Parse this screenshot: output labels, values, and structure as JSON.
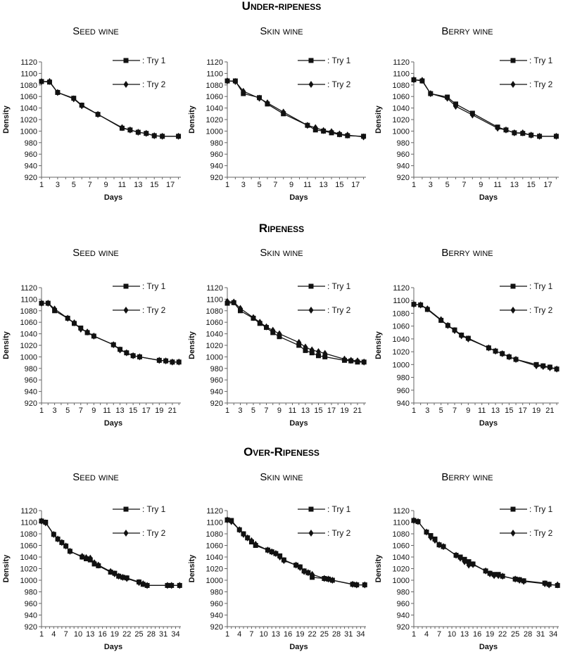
{
  "sections": [
    {
      "title": "Under-ripeness"
    },
    {
      "title": "Ripeness"
    },
    {
      "title": "Over-Ripeness"
    }
  ],
  "chart_data": [
    {
      "type": "line",
      "section": "Under-ripeness",
      "title": "Seed wine",
      "xlabel": "Days",
      "ylabel": "Density",
      "ylim": [
        920,
        1120
      ],
      "ystep": 20,
      "xlim": [
        1,
        18.3
      ],
      "xticks": [
        1,
        3,
        5,
        7,
        9,
        11,
        13,
        15,
        17
      ],
      "series": [
        {
          "name": ": Try 1",
          "marker": "square",
          "x": [
            1,
            2,
            3,
            5,
            6,
            8,
            11,
            12,
            13,
            14,
            15,
            16,
            18
          ],
          "y": [
            1086,
            1085,
            1067,
            1057,
            1045,
            1029,
            1005,
            1002,
            998,
            996,
            992,
            991,
            991
          ]
        },
        {
          "name": ": Try 2",
          "marker": "diamond",
          "x": [
            1,
            2,
            3,
            5,
            6,
            8,
            11,
            12,
            13,
            14,
            15,
            16,
            18
          ],
          "y": [
            1086,
            1086,
            1067,
            1056,
            1044,
            1029,
            1006,
            1002,
            998,
            996,
            992,
            991,
            991
          ]
        }
      ]
    },
    {
      "type": "line",
      "section": "Under-ripeness",
      "title": "Skin wine",
      "xlabel": "Days",
      "ylabel": "Density",
      "ylim": [
        920,
        1120
      ],
      "ystep": 20,
      "xlim": [
        1,
        18.3
      ],
      "xticks": [
        1,
        3,
        5,
        7,
        9,
        11,
        13,
        15,
        17
      ],
      "series": [
        {
          "name": ": Try 1",
          "marker": "square",
          "x": [
            1,
            2,
            3,
            5,
            6,
            8,
            11,
            12,
            13,
            14,
            15,
            16,
            18
          ],
          "y": [
            1087,
            1087,
            1065,
            1058,
            1047,
            1030,
            1010,
            1002,
            1000,
            997,
            994,
            992,
            991
          ]
        },
        {
          "name": ": Try 2",
          "marker": "diamond",
          "x": [
            1,
            2,
            3,
            5,
            6,
            8,
            11,
            12,
            13,
            14,
            15,
            16,
            18
          ],
          "y": [
            1087,
            1086,
            1069,
            1057,
            1049,
            1033,
            1010,
            1006,
            1001,
            999,
            995,
            993,
            990
          ]
        }
      ]
    },
    {
      "type": "line",
      "section": "Under-ripeness",
      "title": "Berry wine",
      "xlabel": "Days",
      "ylabel": "Density",
      "ylim": [
        920,
        1120
      ],
      "ystep": 20,
      "xlim": [
        1,
        18.3
      ],
      "xticks": [
        1,
        3,
        5,
        7,
        9,
        11,
        13,
        15,
        17
      ],
      "series": [
        {
          "name": ": Try 1",
          "marker": "square",
          "x": [
            1,
            2,
            3,
            5,
            6,
            8,
            11,
            12,
            13,
            14,
            15,
            16,
            18
          ],
          "y": [
            1089,
            1087,
            1065,
            1059,
            1047,
            1031,
            1007,
            1002,
            997,
            996,
            993,
            991,
            991
          ]
        },
        {
          "name": ": Try 2",
          "marker": "diamond",
          "x": [
            1,
            2,
            3,
            5,
            6,
            8,
            11,
            12,
            13,
            14,
            15,
            16,
            18
          ],
          "y": [
            1089,
            1088,
            1065,
            1057,
            1043,
            1028,
            1005,
            1002,
            997,
            997,
            993,
            991,
            991
          ]
        }
      ]
    },
    {
      "type": "line",
      "section": "Ripeness",
      "title": "Seed wine",
      "xlabel": "Days",
      "ylabel": "Density",
      "ylim": [
        920,
        1120
      ],
      "ystep": 20,
      "xlim": [
        1,
        22.3
      ],
      "xticks": [
        1,
        3,
        5,
        7,
        9,
        11,
        13,
        15,
        17,
        19,
        21
      ],
      "series": [
        {
          "name": ": Try 1",
          "marker": "square",
          "x": [
            1,
            2,
            3,
            5,
            6,
            7,
            8,
            9,
            12,
            13,
            14,
            15,
            16,
            19,
            20,
            21,
            22
          ],
          "y": [
            1093,
            1093,
            1080,
            1067,
            1058,
            1050,
            1042,
            1036,
            1021,
            1013,
            1007,
            1002,
            1000,
            994,
            993,
            991,
            991
          ]
        },
        {
          "name": ": Try 2",
          "marker": "diamond",
          "x": [
            1,
            2,
            3,
            5,
            6,
            7,
            8,
            9,
            12,
            13,
            14,
            15,
            16,
            19,
            20,
            21,
            22
          ],
          "y": [
            1093,
            1093,
            1083,
            1067,
            1059,
            1048,
            1043,
            1036,
            1021,
            1012,
            1007,
            1002,
            1000,
            994,
            993,
            991,
            991
          ]
        }
      ]
    },
    {
      "type": "line",
      "section": "Ripeness",
      "title": "Skin wine",
      "xlabel": "Days",
      "ylabel": "Density",
      "ylim": [
        920,
        1120
      ],
      "ystep": 20,
      "xlim": [
        1,
        22.3
      ],
      "xticks": [
        1,
        3,
        5,
        7,
        9,
        11,
        13,
        15,
        17,
        19,
        21
      ],
      "series": [
        {
          "name": ": Try 1",
          "marker": "square",
          "x": [
            1,
            2,
            3,
            5,
            6,
            7,
            8,
            9,
            12,
            13,
            14,
            15,
            16,
            19,
            20,
            21,
            22
          ],
          "y": [
            1093,
            1094,
            1080,
            1067,
            1058,
            1051,
            1042,
            1035,
            1020,
            1011,
            1007,
            1002,
            1000,
            994,
            993,
            991,
            991
          ]
        },
        {
          "name": ": Try 2",
          "marker": "diamond",
          "x": [
            1,
            2,
            3,
            5,
            6,
            7,
            8,
            9,
            12,
            13,
            14,
            15,
            16,
            19,
            20,
            21,
            22
          ],
          "y": [
            1096,
            1095,
            1084,
            1068,
            1060,
            1052,
            1046,
            1040,
            1025,
            1017,
            1012,
            1009,
            1006,
            996,
            994,
            993,
            991
          ]
        }
      ]
    },
    {
      "type": "line",
      "section": "Ripeness",
      "title": "Berry wine",
      "xlabel": "Days",
      "ylabel": "Density",
      "ylim": [
        940,
        1120
      ],
      "ystep": 20,
      "xlim": [
        1,
        22.3
      ],
      "xticks": [
        1,
        3,
        5,
        7,
        9,
        11,
        13,
        15,
        17,
        19,
        21
      ],
      "series": [
        {
          "name": ": Try 1",
          "marker": "square",
          "x": [
            1,
            2,
            3,
            5,
            6,
            7,
            8,
            9,
            12,
            13,
            14,
            15,
            16,
            19,
            20,
            21,
            22
          ],
          "y": [
            1094,
            1093,
            1086,
            1069,
            1061,
            1054,
            1046,
            1041,
            1026,
            1021,
            1017,
            1012,
            1008,
            1000,
            998,
            996,
            993
          ]
        },
        {
          "name": ": Try 2",
          "marker": "diamond",
          "x": [
            1,
            2,
            3,
            5,
            6,
            7,
            8,
            9,
            12,
            13,
            14,
            15,
            16,
            19,
            20,
            21,
            22
          ],
          "y": [
            1094,
            1093,
            1087,
            1070,
            1061,
            1053,
            1045,
            1040,
            1026,
            1021,
            1017,
            1012,
            1008,
            998,
            997,
            995,
            993
          ]
        }
      ]
    },
    {
      "type": "line",
      "section": "Over-Ripeness",
      "title": "Seed wine",
      "xlabel": "Days",
      "ylabel": "Density",
      "ylim": [
        920,
        1120
      ],
      "ystep": 20,
      "xlim": [
        1,
        35.3
      ],
      "xticks": [
        1,
        4,
        7,
        10,
        13,
        16,
        19,
        22,
        25,
        28,
        31,
        34
      ],
      "series": [
        {
          "name": ": Try 1",
          "marker": "square",
          "x": [
            1,
            2,
            4,
            5,
            6,
            7,
            8,
            11,
            12,
            13,
            14,
            15,
            18,
            19,
            20,
            21,
            22,
            25,
            26,
            27,
            32,
            33,
            35
          ],
          "y": [
            1102,
            1100,
            1079,
            1071,
            1065,
            1059,
            1050,
            1040,
            1037,
            1035,
            1028,
            1025,
            1014,
            1012,
            1007,
            1005,
            1004,
            997,
            993,
            991,
            991,
            991,
            991
          ]
        },
        {
          "name": ": Try 2",
          "marker": "diamond",
          "x": [
            1,
            2,
            4,
            5,
            6,
            7,
            8,
            11,
            12,
            13,
            14,
            15,
            18,
            19,
            20,
            21,
            22,
            25,
            26,
            27,
            32,
            33,
            35
          ],
          "y": [
            1102,
            1099,
            1079,
            1071,
            1065,
            1059,
            1050,
            1041,
            1039,
            1038,
            1030,
            1026,
            1015,
            1011,
            1007,
            1005,
            1003,
            996,
            994,
            991,
            991,
            991,
            991
          ]
        }
      ]
    },
    {
      "type": "line",
      "section": "Over-Ripeness",
      "title": "Skin wine",
      "xlabel": "Days",
      "ylabel": "Density",
      "ylim": [
        920,
        1120
      ],
      "ystep": 20,
      "xlim": [
        1,
        35.3
      ],
      "xticks": [
        1,
        4,
        7,
        10,
        13,
        16,
        19,
        22,
        25,
        28,
        31,
        34
      ],
      "series": [
        {
          "name": ": Try 1",
          "marker": "square",
          "x": [
            1,
            2,
            4,
            5,
            6,
            7,
            8,
            11,
            12,
            13,
            14,
            15,
            18,
            19,
            20,
            21,
            22,
            25,
            26,
            27,
            32,
            33,
            35
          ],
          "y": [
            1104,
            1103,
            1087,
            1080,
            1073,
            1066,
            1060,
            1052,
            1049,
            1046,
            1042,
            1035,
            1026,
            1023,
            1016,
            1013,
            1005,
            1003,
            1002,
            1000,
            993,
            992,
            992
          ]
        },
        {
          "name": ": Try 2",
          "marker": "diamond",
          "x": [
            1,
            2,
            4,
            5,
            6,
            7,
            8,
            11,
            12,
            13,
            14,
            15,
            18,
            19,
            20,
            21,
            22,
            25,
            26,
            27,
            32,
            33,
            35
          ],
          "y": [
            1104,
            1101,
            1087,
            1079,
            1073,
            1068,
            1062,
            1052,
            1049,
            1046,
            1040,
            1034,
            1026,
            1022,
            1015,
            1013,
            1010,
            1003,
            1002,
            1000,
            993,
            992,
            992
          ]
        }
      ]
    },
    {
      "type": "line",
      "section": "Over-Ripeness",
      "title": "Berry wine",
      "xlabel": "Days",
      "ylabel": "Density",
      "ylim": [
        920,
        1120
      ],
      "ystep": 20,
      "xlim": [
        1,
        35.3
      ],
      "xticks": [
        1,
        4,
        7,
        10,
        13,
        16,
        19,
        22,
        25,
        28,
        31,
        34
      ],
      "series": [
        {
          "name": ": Try 1",
          "marker": "square",
          "x": [
            1,
            2,
            4,
            5,
            6,
            7,
            8,
            11,
            12,
            13,
            14,
            15,
            18,
            19,
            20,
            21,
            22,
            25,
            26,
            27,
            32,
            33,
            35
          ],
          "y": [
            1103,
            1101,
            1083,
            1077,
            1071,
            1061,
            1058,
            1043,
            1040,
            1036,
            1032,
            1028,
            1016,
            1012,
            1010,
            1010,
            1007,
            1002,
            1001,
            999,
            995,
            993,
            991
          ]
        },
        {
          "name": ": Try 2",
          "marker": "diamond",
          "x": [
            1,
            2,
            4,
            5,
            6,
            7,
            8,
            11,
            12,
            13,
            14,
            15,
            18,
            19,
            20,
            21,
            22,
            25,
            26,
            27,
            32,
            33,
            35
          ],
          "y": [
            1103,
            1101,
            1083,
            1074,
            1069,
            1061,
            1058,
            1043,
            1038,
            1032,
            1026,
            1027,
            1016,
            1011,
            1008,
            1008,
            1007,
            1002,
            1000,
            998,
            994,
            992,
            992
          ]
        }
      ]
    }
  ]
}
